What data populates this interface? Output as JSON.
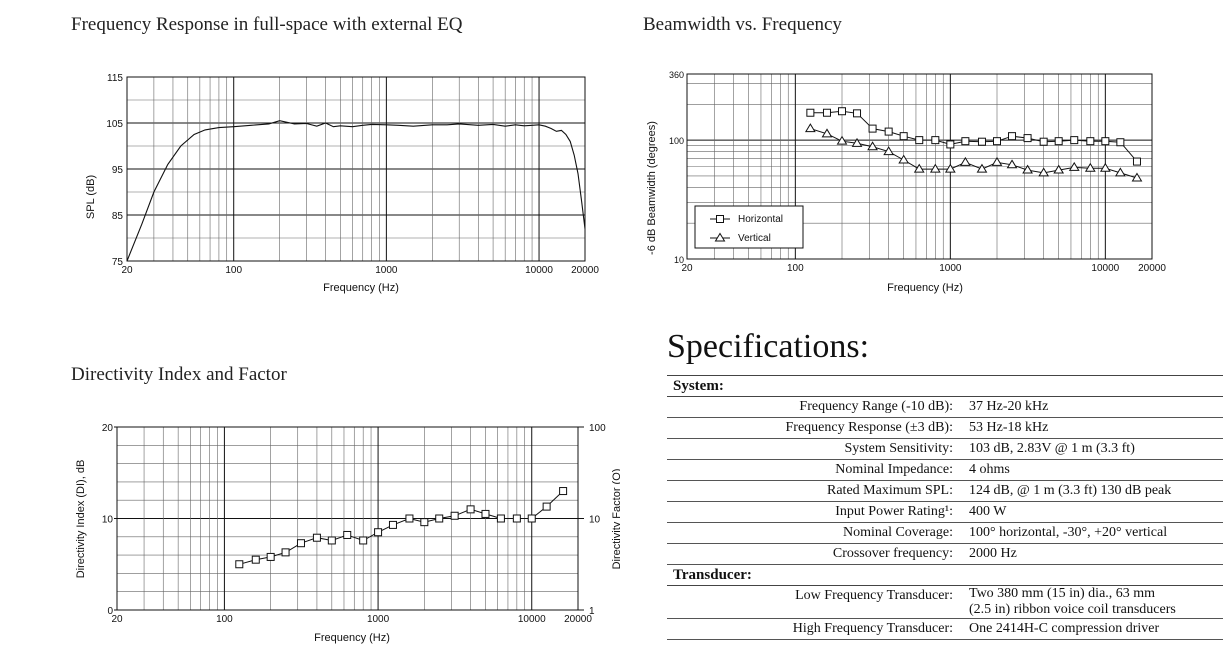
{
  "freq_chart": {
    "title": "Frequency Response in full-space with external EQ",
    "xlabel": "Frequency (Hz)",
    "ylabel": "SPL (dB)",
    "x_ticks": [
      "20",
      "100",
      "1000",
      "10000",
      "20000"
    ],
    "y_ticks": [
      "75",
      "85",
      "95",
      "105",
      "115"
    ]
  },
  "beam_chart": {
    "title": "Beamwidth vs. Frequency",
    "xlabel": "Frequency (Hz)",
    "ylabel": "-6 dB Beamwidth (degrees)",
    "x_ticks": [
      "20",
      "100",
      "1000",
      "10000",
      "20000"
    ],
    "y_ticks": [
      "10",
      "100",
      "360"
    ],
    "legend": [
      "Horizontal",
      "Vertical"
    ]
  },
  "di_chart": {
    "title": "Directivity Index and Factor",
    "xlabel": "Frequency (Hz)",
    "ylabel_left": "Directivity Index (DI), dB",
    "ylabel_right": "Directivity Factor (Q)",
    "x_ticks": [
      "20",
      "100",
      "1000",
      "10000",
      "20000"
    ],
    "y_ticks_left": [
      "0",
      "10",
      "20"
    ],
    "y_ticks_right": [
      "1",
      "10",
      "100"
    ]
  },
  "chart_data": [
    {
      "type": "line",
      "title": "Frequency Response in full-space with external EQ",
      "xlabel": "Frequency (Hz)",
      "ylabel": "SPL (dB)",
      "xscale": "log",
      "xlim": [
        20,
        20000
      ],
      "ylim": [
        75,
        115
      ],
      "grid": true,
      "series": [
        {
          "x": [
            20,
            25,
            30,
            37,
            45,
            55,
            65,
            80,
            100,
            130,
            170,
            200,
            250,
            300,
            350,
            400,
            450,
            500,
            600,
            700,
            800,
            1000,
            1200,
            1500,
            2000,
            2500,
            3000,
            4000,
            5000,
            6000,
            7000,
            8000,
            9000,
            10000,
            11000,
            12000,
            13000,
            14000,
            15000,
            16000,
            17000,
            18000,
            19000,
            20000
          ],
          "y": [
            75,
            83,
            90,
            96,
            100,
            102.5,
            103.5,
            104,
            104.2,
            104.5,
            104.8,
            105.5,
            104.8,
            104.9,
            104.3,
            105,
            104.2,
            104.4,
            104.2,
            104.5,
            104.7,
            104.6,
            104.5,
            104.3,
            104.6,
            104.6,
            104.8,
            104.5,
            104.7,
            104.3,
            104.6,
            104.4,
            104.5,
            104.6,
            104.3,
            103.8,
            103.2,
            103.4,
            102.5,
            101,
            98,
            94,
            88,
            82
          ]
        }
      ]
    },
    {
      "type": "line",
      "title": "Beamwidth vs. Frequency",
      "xlabel": "Frequency (Hz)",
      "ylabel": "-6 dB Beamwidth (degrees)",
      "xscale": "log",
      "yscale": "log",
      "xlim": [
        20,
        20000
      ],
      "ylim": [
        10,
        360
      ],
      "grid": true,
      "legend_position": "bottom-left",
      "series": [
        {
          "name": "Horizontal",
          "marker": "square",
          "x": [
            125,
            160,
            200,
            250,
            315,
            400,
            500,
            630,
            800,
            1000,
            1250,
            1600,
            2000,
            2500,
            3150,
            4000,
            5000,
            6300,
            8000,
            10000,
            12500,
            16000
          ],
          "y": [
            170,
            170,
            175,
            168,
            125,
            118,
            108,
            100,
            100,
            92,
            98,
            97,
            98,
            108,
            104,
            97,
            98,
            100,
            98,
            98,
            96,
            66
          ]
        },
        {
          "name": "Vertical",
          "marker": "triangle",
          "x": [
            125,
            160,
            200,
            250,
            315,
            400,
            500,
            630,
            800,
            1000,
            1250,
            1600,
            2000,
            2500,
            3150,
            4000,
            5000,
            6300,
            8000,
            10000,
            12500,
            16000
          ],
          "y": [
            125,
            113,
            98,
            94,
            88,
            80,
            68,
            57,
            57,
            57,
            65,
            57,
            65,
            62,
            56,
            53,
            56,
            59,
            58,
            58,
            53,
            48
          ]
        }
      ]
    },
    {
      "type": "line",
      "title": "Directivity Index and Factor",
      "xlabel": "Frequency (Hz)",
      "ylabel": "Directivity Index (DI), dB",
      "y2label": "Directivity Factor (Q)",
      "xscale": "log",
      "xlim": [
        20,
        20000
      ],
      "ylim": [
        0,
        20
      ],
      "y2lim": [
        1,
        100
      ],
      "y2scale": "log",
      "grid": true,
      "series": [
        {
          "marker": "square",
          "x": [
            125,
            160,
            200,
            250,
            315,
            400,
            500,
            630,
            800,
            1000,
            1250,
            1600,
            2000,
            2500,
            3150,
            4000,
            5000,
            6300,
            8000,
            10000,
            12500,
            16000
          ],
          "y": [
            5.0,
            5.5,
            5.8,
            6.3,
            7.3,
            7.9,
            7.6,
            8.2,
            7.6,
            8.5,
            9.3,
            10.0,
            9.6,
            10.0,
            10.3,
            11.0,
            10.5,
            10.0,
            10.0,
            10.0,
            11.3,
            13.0
          ]
        }
      ]
    }
  ],
  "specs": {
    "heading": "Specifications:",
    "sections": [
      {
        "name": "System:",
        "rows": [
          {
            "label": "Frequency Range (-10 dB):",
            "value": "37 Hz-20 kHz"
          },
          {
            "label": "Frequency Response (±3 dB):",
            "value": "53 Hz-18 kHz"
          },
          {
            "label": "System Sensitivity:",
            "value": "103 dB, 2.83V @ 1 m (3.3 ft)"
          },
          {
            "label": "Nominal Impedance:",
            "value": "4 ohms"
          },
          {
            "label": "Rated Maximum SPL:",
            "value": "124 dB, @ 1 m (3.3 ft) 130 dB peak"
          },
          {
            "label": "Input Power Rating¹:",
            "value": "400 W"
          },
          {
            "label": "Nominal Coverage:",
            "value": "100° horizontal, -30°, +20° vertical"
          },
          {
            "label": "Crossover frequency:",
            "value": "2000 Hz"
          }
        ]
      },
      {
        "name": "Transducer:",
        "rows": [
          {
            "label": "Low Frequency Transducer:",
            "value": "Two 380 mm (15 in) dia., 63 mm",
            "value2": "(2.5 in) ribbon voice coil transducers"
          },
          {
            "label": "High Frequency Transducer:",
            "value": "One 2414H-C compression driver"
          }
        ]
      }
    ]
  }
}
